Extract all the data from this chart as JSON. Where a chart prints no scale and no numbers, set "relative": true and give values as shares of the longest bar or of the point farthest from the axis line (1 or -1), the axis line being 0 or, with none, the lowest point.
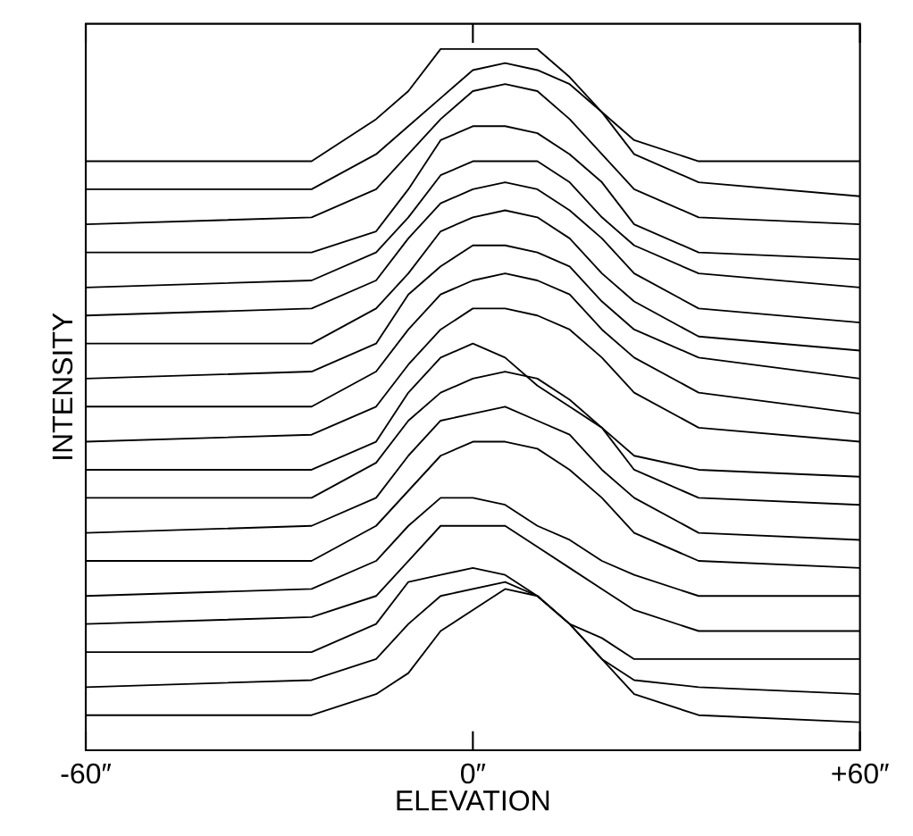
{
  "chart_data": {
    "type": "line",
    "relative": true,
    "xlabel": "ELEVATION",
    "ylabel": "INTENSITY",
    "tick_labels": "x",
    "marker": "none",
    "x": [
      -60,
      -25,
      -15,
      -10,
      -5,
      0,
      5,
      10,
      15,
      20,
      25,
      35,
      60
    ],
    "xlim": [
      -60,
      60
    ],
    "xticks": [
      {
        "value": -60,
        "label": "-60″"
      },
      {
        "value": 0,
        "label": "0″"
      },
      {
        "value": 60,
        "label": "+60″"
      }
    ],
    "series": [
      {
        "color": "#000000",
        "values": [
          0.84,
          0.84,
          0.9,
          0.94,
          1.0,
          1.0,
          1.0,
          1.0,
          0.96,
          0.91,
          0.87,
          0.84,
          0.84
        ]
      },
      {
        "color": "#000000",
        "values": [
          0.8,
          0.8,
          0.85,
          0.89,
          0.93,
          0.97,
          0.98,
          0.97,
          0.95,
          0.91,
          0.85,
          0.81,
          0.79
        ]
      },
      {
        "color": "#000000",
        "values": [
          0.75,
          0.76,
          0.8,
          0.85,
          0.9,
          0.94,
          0.95,
          0.94,
          0.9,
          0.85,
          0.8,
          0.76,
          0.75
        ]
      },
      {
        "color": "#000000",
        "values": [
          0.71,
          0.71,
          0.74,
          0.8,
          0.87,
          0.89,
          0.89,
          0.88,
          0.85,
          0.81,
          0.75,
          0.71,
          0.7
        ]
      },
      {
        "color": "#000000",
        "values": [
          0.66,
          0.67,
          0.71,
          0.76,
          0.82,
          0.84,
          0.84,
          0.84,
          0.81,
          0.76,
          0.72,
          0.68,
          0.66
        ]
      },
      {
        "color": "#000000",
        "values": [
          0.62,
          0.63,
          0.67,
          0.73,
          0.78,
          0.8,
          0.81,
          0.8,
          0.77,
          0.73,
          0.68,
          0.63,
          0.61
        ]
      },
      {
        "color": "#000000",
        "values": [
          0.58,
          0.58,
          0.63,
          0.68,
          0.74,
          0.76,
          0.77,
          0.76,
          0.73,
          0.68,
          0.64,
          0.59,
          0.57
        ]
      },
      {
        "color": "#000000",
        "values": [
          0.53,
          0.54,
          0.58,
          0.65,
          0.69,
          0.72,
          0.72,
          0.71,
          0.69,
          0.64,
          0.6,
          0.56,
          0.53
        ]
      },
      {
        "color": "#000000",
        "values": [
          0.49,
          0.49,
          0.54,
          0.6,
          0.65,
          0.67,
          0.68,
          0.67,
          0.65,
          0.6,
          0.56,
          0.51,
          0.48
        ]
      },
      {
        "color": "#000000",
        "values": [
          0.44,
          0.45,
          0.49,
          0.55,
          0.6,
          0.63,
          0.63,
          0.62,
          0.6,
          0.56,
          0.51,
          0.46,
          0.44
        ]
      },
      {
        "color": "#000000",
        "values": [
          0.4,
          0.4,
          0.44,
          0.51,
          0.56,
          0.58,
          0.56,
          0.52,
          0.49,
          0.46,
          0.42,
          0.4,
          0.39
        ]
      },
      {
        "color": "#000000",
        "values": [
          0.36,
          0.36,
          0.41,
          0.47,
          0.51,
          0.53,
          0.54,
          0.53,
          0.5,
          0.46,
          0.4,
          0.36,
          0.35
        ]
      },
      {
        "color": "#000000",
        "values": [
          0.31,
          0.32,
          0.36,
          0.42,
          0.47,
          0.48,
          0.49,
          0.47,
          0.45,
          0.4,
          0.36,
          0.31,
          0.3
        ]
      },
      {
        "color": "#000000",
        "values": [
          0.27,
          0.27,
          0.32,
          0.37,
          0.42,
          0.44,
          0.44,
          0.43,
          0.4,
          0.36,
          0.31,
          0.27,
          0.26
        ]
      },
      {
        "color": "#000000",
        "values": [
          0.22,
          0.23,
          0.27,
          0.32,
          0.36,
          0.36,
          0.35,
          0.32,
          0.3,
          0.27,
          0.25,
          0.22,
          0.22
        ]
      },
      {
        "color": "#000000",
        "values": [
          0.18,
          0.19,
          0.22,
          0.27,
          0.32,
          0.32,
          0.32,
          0.29,
          0.26,
          0.23,
          0.2,
          0.17,
          0.17
        ]
      },
      {
        "color": "#000000",
        "values": [
          0.14,
          0.14,
          0.18,
          0.24,
          0.25,
          0.26,
          0.25,
          0.22,
          0.18,
          0.16,
          0.13,
          0.13,
          0.13
        ]
      },
      {
        "color": "#000000",
        "values": [
          0.09,
          0.1,
          0.13,
          0.18,
          0.22,
          0.23,
          0.24,
          0.22,
          0.18,
          0.13,
          0.1,
          0.09,
          0.08
        ]
      },
      {
        "color": "#000000",
        "values": [
          0.05,
          0.05,
          0.08,
          0.11,
          0.17,
          0.2,
          0.23,
          0.22,
          0.18,
          0.13,
          0.08,
          0.05,
          0.04
        ]
      }
    ]
  }
}
